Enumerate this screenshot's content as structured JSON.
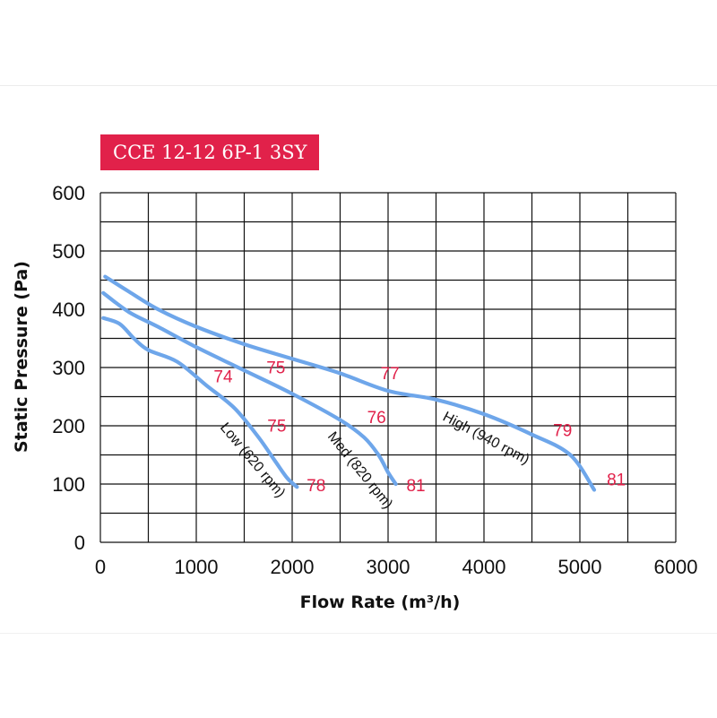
{
  "colors": {
    "accent": "#e1214a",
    "curve": "#6ea6ea",
    "grid": "#111111",
    "noise_label": "#e1214a"
  },
  "chart_data": {
    "type": "line",
    "title": "CCE 12-12 6P-1 3SY",
    "xlabel": "Flow Rate (m³/h)",
    "ylabel": "Static Pressure (Pa)",
    "xlim": [
      0,
      6000
    ],
    "ylim": [
      0,
      600
    ],
    "x_ticks": [
      "0",
      "1000",
      "2000",
      "3000",
      "4000",
      "5000",
      "6000"
    ],
    "y_ticks": [
      "0",
      "100",
      "200",
      "300",
      "400",
      "500",
      "600"
    ],
    "grid": true,
    "series": [
      {
        "name": "Low (620 rpm)",
        "x": [
          30,
          200,
          350,
          500,
          800,
          1100,
          1400,
          1650,
          1820,
          1950,
          2050
        ],
        "y": [
          385,
          375,
          350,
          330,
          310,
          270,
          230,
          180,
          140,
          110,
          95
        ]
      },
      {
        "name": "Med (820 rpm)",
        "x": [
          30,
          300,
          600,
          1000,
          1500,
          2000,
          2500,
          2750,
          2900,
          3000,
          3080
        ],
        "y": [
          428,
          395,
          370,
          335,
          295,
          255,
          210,
          180,
          150,
          120,
          100
        ]
      },
      {
        "name": "High (940 rpm)",
        "x": [
          50,
          300,
          600,
          1000,
          1500,
          2000,
          2500,
          3000,
          3500,
          4000,
          4500,
          4900,
          5150
        ],
        "y": [
          456,
          430,
          400,
          370,
          340,
          315,
          290,
          260,
          245,
          220,
          185,
          150,
          90
        ]
      }
    ],
    "annotations": [
      {
        "text": "74",
        "x": 1280,
        "y": 275
      },
      {
        "text": "75",
        "x": 1840,
        "y": 190
      },
      {
        "text": "78",
        "x": 2250,
        "y": 88
      },
      {
        "text": "75",
        "x": 1830,
        "y": 290
      },
      {
        "text": "76",
        "x": 2880,
        "y": 205
      },
      {
        "text": "81",
        "x": 3290,
        "y": 88
      },
      {
        "text": "77",
        "x": 3020,
        "y": 280
      },
      {
        "text": "79",
        "x": 4820,
        "y": 182
      },
      {
        "text": "81",
        "x": 5380,
        "y": 98
      }
    ]
  }
}
